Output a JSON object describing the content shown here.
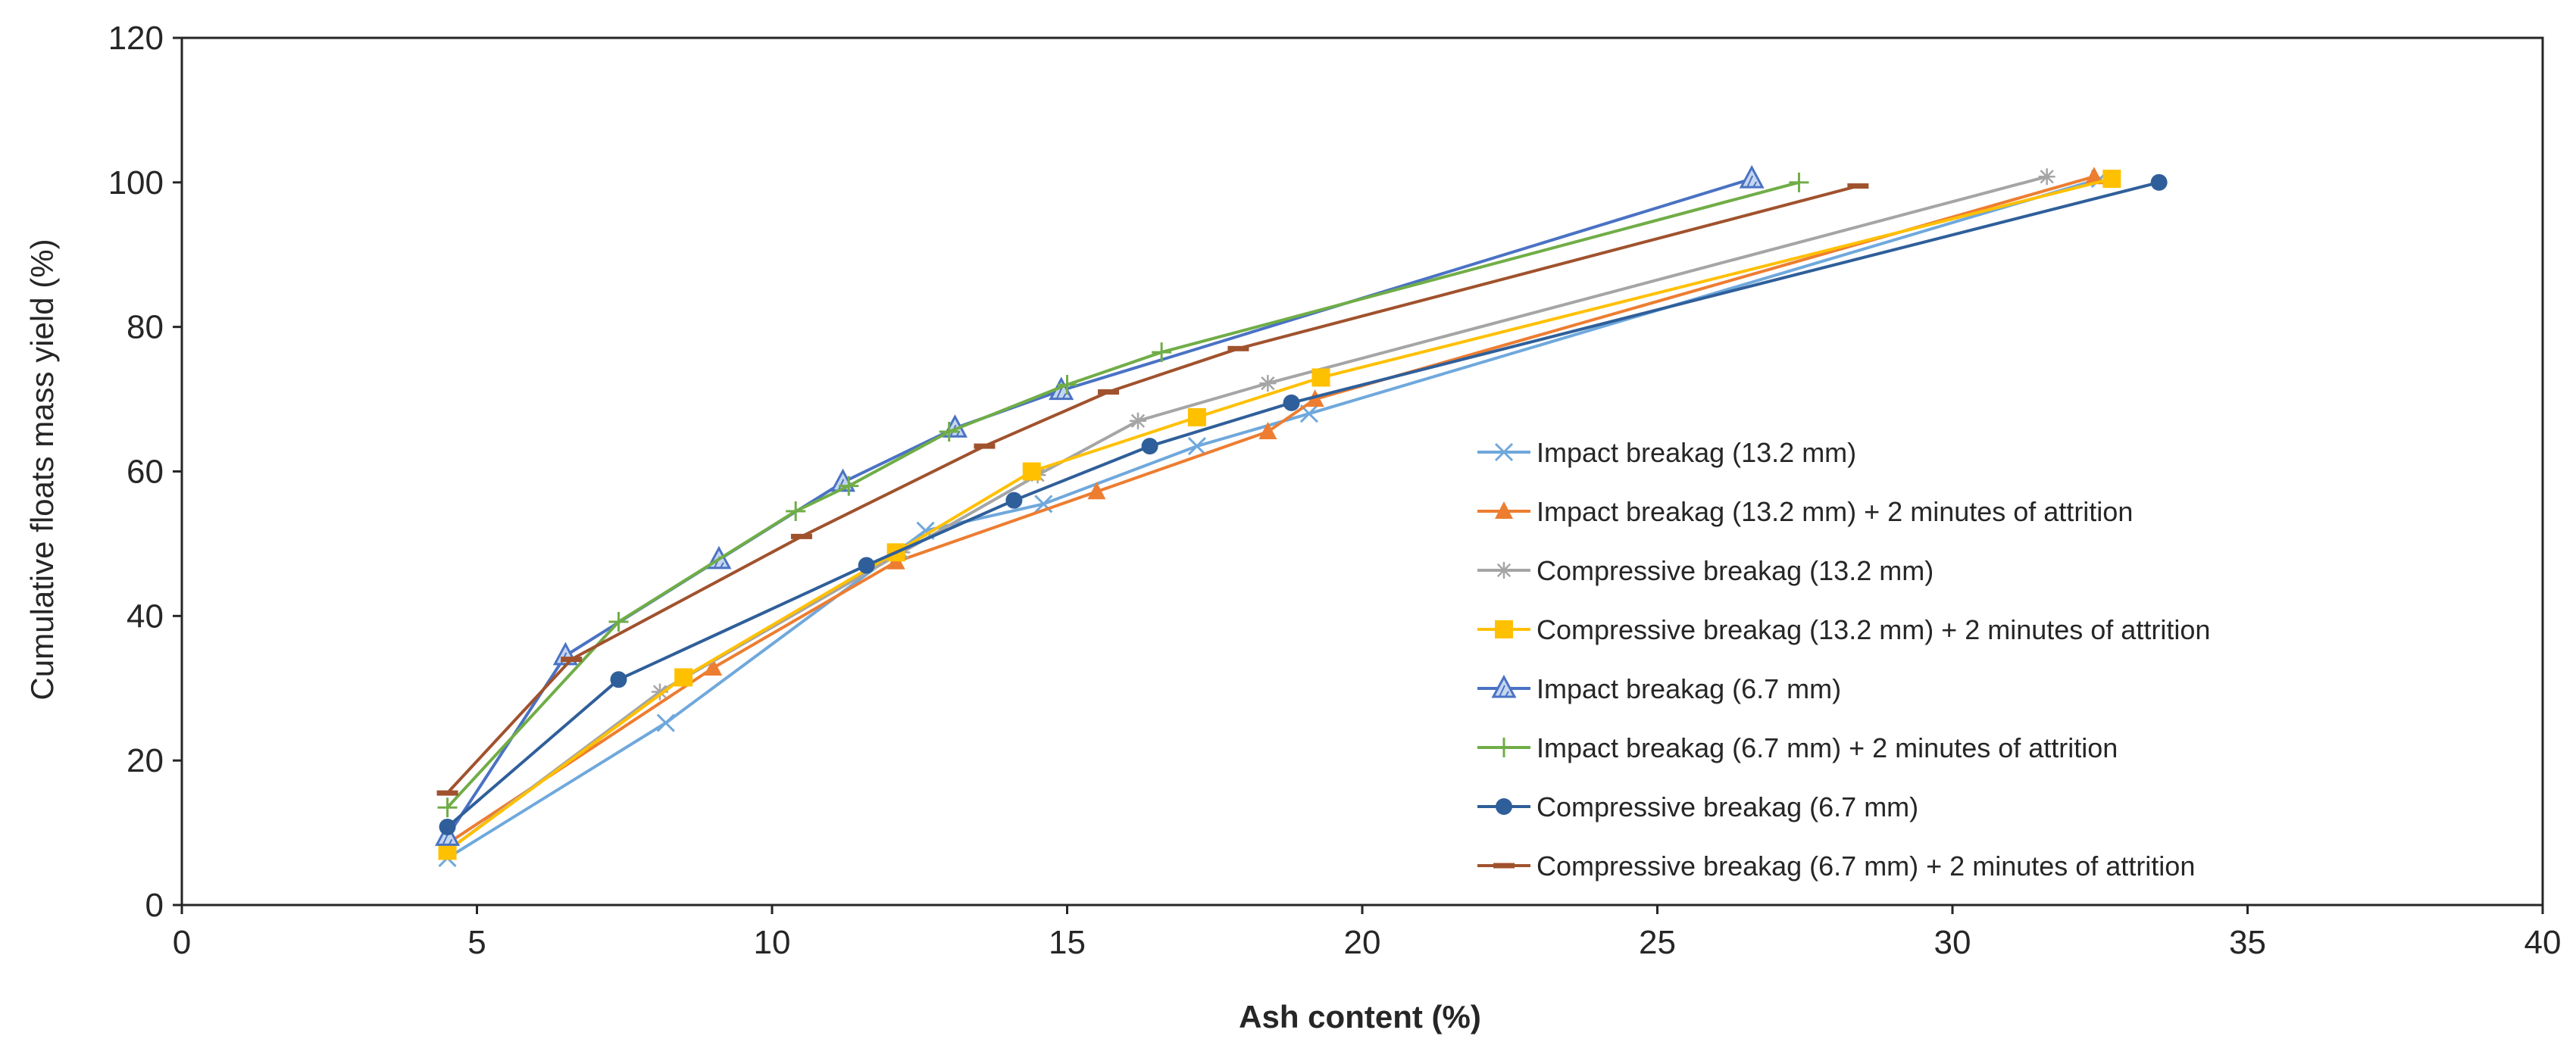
{
  "chart_data": {
    "type": "line",
    "xlabel": "Ash content (%)",
    "ylabel": "Cumulative floats mass yield (%)",
    "xlim": [
      0,
      40
    ],
    "ylim": [
      0,
      120
    ],
    "xticks": [
      0,
      5,
      10,
      15,
      20,
      25,
      30,
      35,
      40
    ],
    "yticks": [
      0,
      20,
      40,
      60,
      80,
      100,
      120
    ],
    "grid": false,
    "legend_position": "inside-right",
    "series": [
      {
        "name": "Impact breakag (13.2 mm)",
        "color": "#6fa8dc",
        "marker": "x",
        "x": [
          4.5,
          8.2,
          12.6,
          14.6,
          17.2,
          19.1,
          32.5
        ],
        "y": [
          6.5,
          25.2,
          51.8,
          55.5,
          63.5,
          68,
          100.5
        ]
      },
      {
        "name": "Impact breakag (13.2 mm) + 2 minutes of attrition",
        "color": "#ed7d31",
        "marker": "triangle",
        "x": [
          4.5,
          9,
          12.1,
          15.5,
          18.4,
          19.2,
          32.4
        ],
        "y": [
          8.5,
          32.8,
          47.5,
          57.2,
          65.5,
          70,
          100.8
        ]
      },
      {
        "name": "Compressive breakag (13.2 mm)",
        "color": "#a5a5a5",
        "marker": "star",
        "x": [
          4.5,
          8.1,
          12.2,
          14.5,
          16.2,
          18.4,
          31.6
        ],
        "y": [
          7.5,
          29.5,
          48.8,
          59.5,
          67,
          72.2,
          100.8
        ]
      },
      {
        "name": "Compressive breakag (13.2 mm) + 2 minutes of attrition",
        "color": "#ffc000",
        "marker": "square",
        "x": [
          4.5,
          8.5,
          12.1,
          14.4,
          17.2,
          19.3,
          32.7
        ],
        "y": [
          7.5,
          31.5,
          48.8,
          60,
          67.5,
          73,
          100.5
        ]
      },
      {
        "name": "Impact breakag (6.7 mm)",
        "color": "#4a72c4",
        "marker": "triangle-hatched",
        "x": [
          4.5,
          6.5,
          9.1,
          11.2,
          13.1,
          14.9,
          26.6
        ],
        "y": [
          9.5,
          34.5,
          47.8,
          58.5,
          66,
          71.2,
          100.5
        ]
      },
      {
        "name": "Impact breakag (6.7 mm) + 2 minutes of attrition",
        "color": "#70ad47",
        "marker": "plus",
        "x": [
          4.5,
          7.4,
          10.4,
          11.3,
          13,
          15,
          16.6,
          27.4
        ],
        "y": [
          13.5,
          39.2,
          54.5,
          58,
          65.5,
          72,
          76.5,
          100
        ]
      },
      {
        "name": "Compressive breakag (6.7 mm)",
        "color": "#2f5f9a",
        "marker": "circle",
        "x": [
          4.5,
          7.4,
          11.6,
          14.1,
          16.4,
          18.8,
          33.5
        ],
        "y": [
          10.8,
          31.2,
          47,
          56,
          63.5,
          69.5,
          100
        ]
      },
      {
        "name": "Compressive breakag (6.7 mm) + 2 minutes of attrition",
        "color": "#a0522d",
        "marker": "dash",
        "x": [
          4.5,
          6.6,
          10.5,
          13.6,
          15.7,
          17.9,
          28.4
        ],
        "y": [
          15.5,
          34,
          51,
          63.5,
          71,
          77,
          99.5
        ]
      }
    ]
  }
}
